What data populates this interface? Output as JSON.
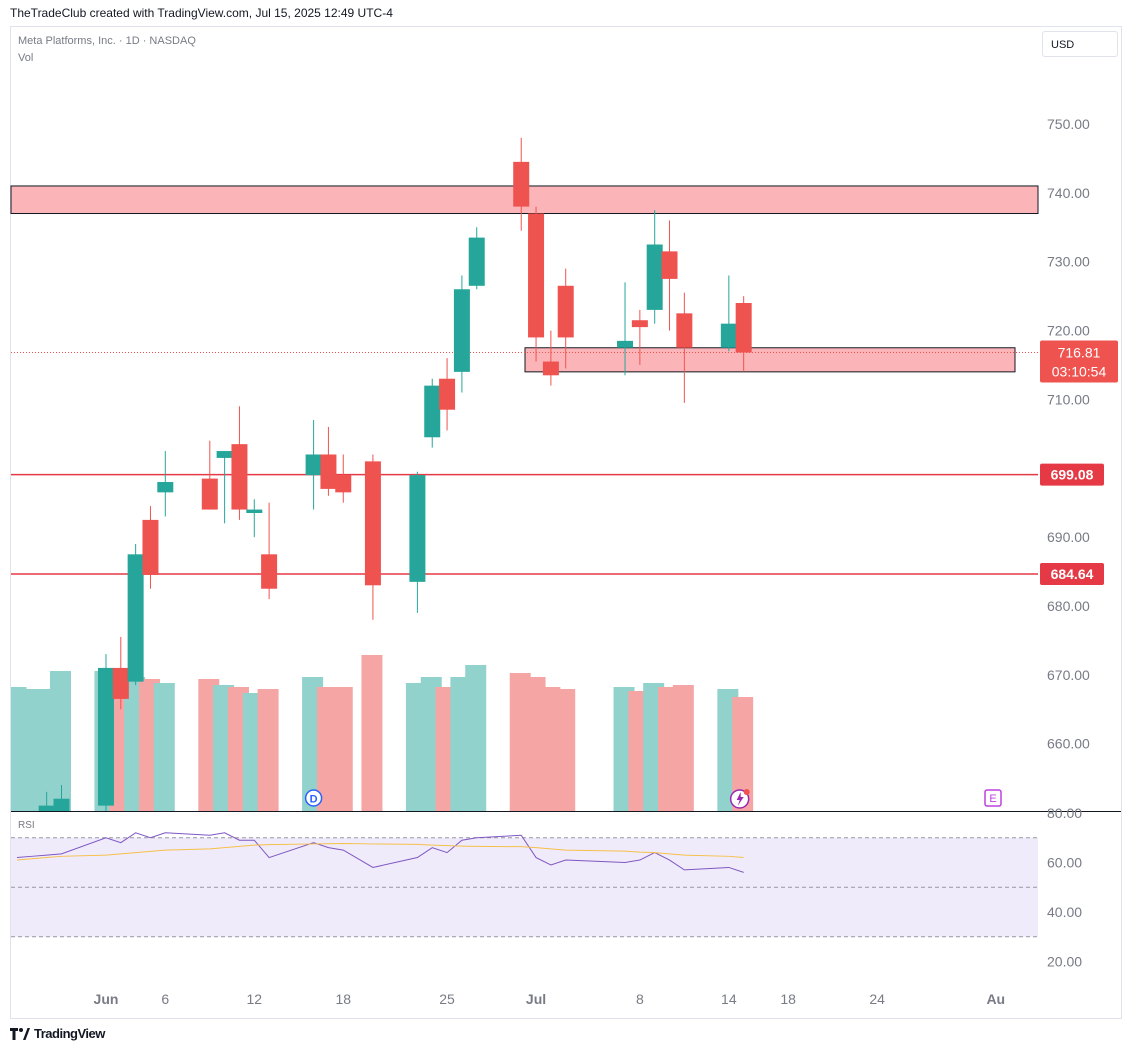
{
  "header": {
    "credit": "TheTradeClub created with TradingView.com, Jul 15, 2025 12:49 UTC-4"
  },
  "legend": {
    "symbol_line": "Meta Platforms, Inc. · 1D · NASDAQ",
    "vol_label": "Vol",
    "rsi_label": "RSI"
  },
  "toolbar": {
    "currency": "USD"
  },
  "footer": {
    "brand": "TradingView"
  },
  "colors": {
    "up": "#26a69a",
    "down": "#ef5350",
    "up_vol": "#92d2cc",
    "down_vol": "#f5a6a4",
    "zone_fill": "#fbb5b8",
    "level_line": "#e53945",
    "rsi_line": "#7e57c2",
    "rsi_ma": "#f5c04a",
    "rsi_band": "#f0ebfa"
  },
  "chart_data": {
    "type": "candlestick",
    "x_tick_labels": [
      {
        "label": "Jun",
        "date": "2025-06-02"
      },
      {
        "label": "6",
        "date": "2025-06-06"
      },
      {
        "label": "12",
        "date": "2025-06-12"
      },
      {
        "label": "18",
        "date": "2025-06-18"
      },
      {
        "label": "25",
        "date": "2025-06-25"
      },
      {
        "label": "Jul",
        "date": "2025-07-01"
      },
      {
        "label": "8",
        "date": "2025-07-08"
      },
      {
        "label": "14",
        "date": "2025-07-14"
      },
      {
        "label": "18",
        "date": "2025-07-18"
      },
      {
        "label": "24",
        "date": "2025-07-24"
      },
      {
        "label": "Au",
        "date": "2025-08-01"
      }
    ],
    "price_axis": {
      "min": 650,
      "max": 760,
      "ticks": [
        "750.00",
        "740.00",
        "730.00",
        "720.00",
        "710.00",
        "700.00",
        "690.00",
        "680.00",
        "670.00",
        "660.00"
      ]
    },
    "rsi_axis": {
      "min": 10,
      "max": 85,
      "ticks": [
        "80.00",
        "60.00",
        "40.00",
        "20.00"
      ],
      "bands": [
        70,
        50,
        30
      ]
    },
    "candles": [
      {
        "date": "2025-05-27",
        "o": 640,
        "h": 644,
        "l": 636,
        "c": 642,
        "v": 62
      },
      {
        "date": "2025-05-28",
        "o": 643,
        "h": 646,
        "l": 639,
        "c": 645,
        "v": 61
      },
      {
        "date": "2025-05-29",
        "o": 648,
        "h": 653,
        "l": 642,
        "c": 651,
        "v": 61
      },
      {
        "date": "2025-05-30",
        "o": 645,
        "h": 654,
        "l": 642,
        "c": 652,
        "v": 70
      },
      {
        "date": "2025-06-02",
        "o": 651,
        "h": 673,
        "l": 650,
        "c": 671,
        "v": 70
      },
      {
        "date": "2025-06-03",
        "o": 671,
        "h": 675.5,
        "l": 665,
        "c": 666.5,
        "v": 64
      },
      {
        "date": "2025-06-04",
        "o": 669,
        "h": 689,
        "l": 668.5,
        "c": 687.5,
        "v": 67
      },
      {
        "date": "2025-06-05",
        "o": 692.5,
        "h": 694.5,
        "l": 682.5,
        "c": 684.5,
        "v": 66
      },
      {
        "date": "2025-06-06",
        "o": 696.5,
        "h": 702.5,
        "l": 693,
        "c": 698,
        "v": 64
      },
      {
        "date": "2025-06-09",
        "o": 698.5,
        "h": 704,
        "l": 694,
        "c": 694,
        "v": 66
      },
      {
        "date": "2025-06-10",
        "o": 701.5,
        "h": 702.5,
        "l": 692,
        "c": 702.5,
        "v": 63
      },
      {
        "date": "2025-06-11",
        "o": 703.5,
        "h": 709,
        "l": 692.5,
        "c": 694,
        "v": 62
      },
      {
        "date": "2025-06-12",
        "o": 693.5,
        "h": 695.5,
        "l": 690,
        "c": 694,
        "v": 59
      },
      {
        "date": "2025-06-13",
        "o": 687.5,
        "h": 695,
        "l": 681,
        "c": 682.5,
        "v": 61
      },
      {
        "date": "2025-06-16",
        "o": 699,
        "h": 707,
        "l": 694,
        "c": 702,
        "v": 67
      },
      {
        "date": "2025-06-17",
        "o": 702,
        "h": 706,
        "l": 696,
        "c": 697,
        "v": 62
      },
      {
        "date": "2025-06-18",
        "o": 699,
        "h": 702,
        "l": 695,
        "c": 696.5,
        "v": 62
      },
      {
        "date": "2025-06-20",
        "o": 701,
        "h": 702,
        "l": 678,
        "c": 683,
        "v": 78
      },
      {
        "date": "2025-06-23",
        "o": 683.5,
        "h": 699.5,
        "l": 679,
        "c": 699,
        "v": 64
      },
      {
        "date": "2025-06-24",
        "o": 704.5,
        "h": 713,
        "l": 703,
        "c": 712,
        "v": 67
      },
      {
        "date": "2025-06-25",
        "o": 713,
        "h": 716,
        "l": 705.5,
        "c": 708.5,
        "v": 62
      },
      {
        "date": "2025-06-26",
        "o": 714,
        "h": 728,
        "l": 711,
        "c": 726,
        "v": 67
      },
      {
        "date": "2025-06-27",
        "o": 726.5,
        "h": 735,
        "l": 726,
        "c": 733.5,
        "v": 73
      },
      {
        "date": "2025-06-30",
        "o": 744.5,
        "h": 748,
        "l": 734.5,
        "c": 738,
        "v": 69
      },
      {
        "date": "2025-07-01",
        "o": 737,
        "h": 738,
        "l": 715.5,
        "c": 719,
        "v": 67
      },
      {
        "date": "2025-07-02",
        "o": 715.5,
        "h": 720,
        "l": 712,
        "c": 713.5,
        "v": 62
      },
      {
        "date": "2025-07-03",
        "o": 726.5,
        "h": 729,
        "l": 714.5,
        "c": 719,
        "v": 61
      },
      {
        "date": "2025-07-07",
        "o": 717.5,
        "h": 727,
        "l": 713.5,
        "c": 718.5,
        "v": 62
      },
      {
        "date": "2025-07-08",
        "o": 721.5,
        "h": 723,
        "l": 715,
        "c": 720.5,
        "v": 60
      },
      {
        "date": "2025-07-09",
        "o": 723,
        "h": 737.5,
        "l": 721,
        "c": 732.5,
        "v": 64
      },
      {
        "date": "2025-07-10",
        "o": 731.5,
        "h": 736,
        "l": 720,
        "c": 727.5,
        "v": 62
      },
      {
        "date": "2025-07-11",
        "o": 722.5,
        "h": 725.5,
        "l": 709.5,
        "c": 717.5,
        "v": 63
      },
      {
        "date": "2025-07-14",
        "o": 717.5,
        "h": 728,
        "l": 717,
        "c": 721,
        "v": 61
      },
      {
        "date": "2025-07-15",
        "o": 724,
        "h": 725,
        "l": 714,
        "c": 716.81,
        "v": 57
      }
    ],
    "volume_axis": {
      "max": 100
    },
    "rsi": [
      62,
      62.5,
      63,
      63.5,
      70,
      68,
      72,
      70,
      72,
      71,
      72,
      69,
      69,
      62,
      68,
      66,
      65,
      58,
      62,
      66,
      64,
      69,
      70,
      71,
      62,
      59,
      61,
      60,
      61,
      64,
      61,
      57,
      58,
      56
    ],
    "rsi_ma": [
      61,
      61.5,
      62,
      62.5,
      63,
      63.5,
      64,
      64.5,
      65,
      65.5,
      66,
      66.5,
      67,
      67.2,
      67.5,
      67.6,
      67.7,
      67.5,
      67.3,
      67,
      66.8,
      66.6,
      66.5,
      66.4,
      66,
      65.5,
      65,
      64.6,
      64.2,
      64,
      63.5,
      63,
      62.5,
      62
    ],
    "zones": [
      {
        "low": 737,
        "high": 741
      },
      {
        "low": 714,
        "high": 717.5
      }
    ],
    "levels": [
      {
        "value": 699.08,
        "label": "699.08"
      },
      {
        "value": 684.64,
        "label": "684.64"
      }
    ],
    "last_price": {
      "value": 716.81,
      "label": "716.81",
      "countdown": "03:10:54"
    },
    "events": {
      "dividend": "D",
      "earnings": "E"
    }
  }
}
